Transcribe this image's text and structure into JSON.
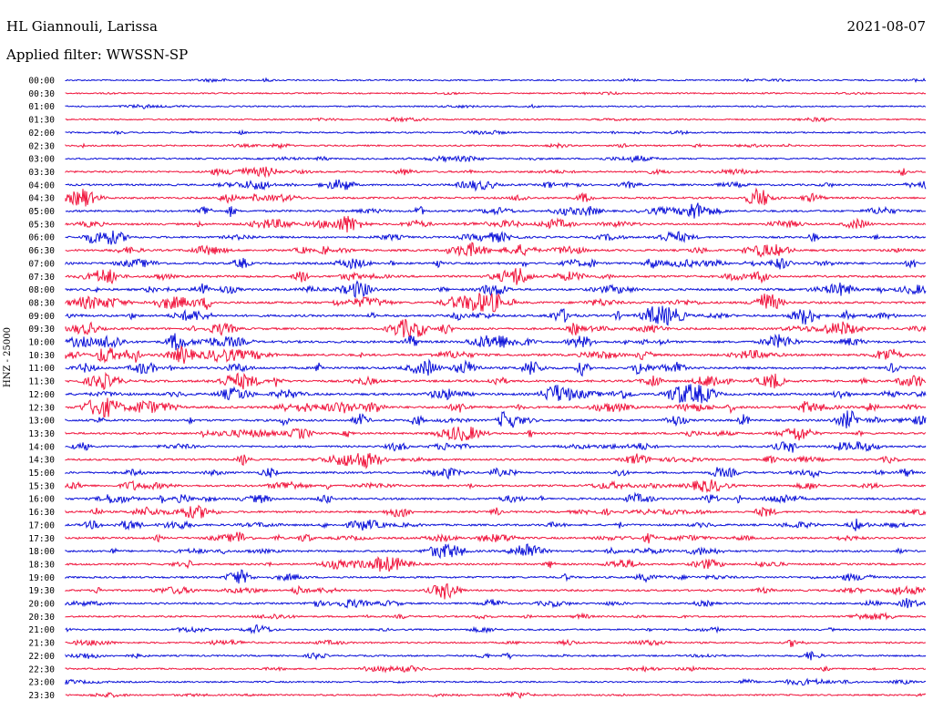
{
  "header": {
    "station": "HL Giannouli, Larissa",
    "date": "2021-08-07",
    "filter": "Applied filter: WWSSN-SP"
  },
  "colors": {
    "even_row": "#0a10d8",
    "odd_row": "#f0143c"
  },
  "chart_data": {
    "type": "line",
    "title": "HL Giannouli, Larissa",
    "ylabel": "HNZ - 25000",
    "xlabel": "",
    "row_labels": [
      "00:00",
      "00:30",
      "01:00",
      "01:30",
      "02:00",
      "02:30",
      "03:00",
      "03:30",
      "04:00",
      "04:30",
      "05:00",
      "05:30",
      "06:00",
      "06:30",
      "07:00",
      "07:30",
      "08:00",
      "08:30",
      "09:00",
      "09:30",
      "10:00",
      "10:30",
      "11:00",
      "11:30",
      "12:00",
      "12:30",
      "13:00",
      "13:30",
      "14:00",
      "14:30",
      "15:00",
      "15:30",
      "16:00",
      "16:30",
      "17:00",
      "17:30",
      "18:00",
      "18:30",
      "19:00",
      "19:30",
      "20:00",
      "20:30",
      "21:00",
      "21:30",
      "22:00",
      "22:30",
      "23:00",
      "23:30"
    ],
    "series_colors": [
      "#0a10d8",
      "#f0143c"
    ],
    "activity_levels": [
      0.15,
      0.12,
      0.12,
      0.15,
      0.2,
      0.22,
      0.25,
      0.4,
      0.45,
      0.45,
      0.5,
      0.5,
      0.5,
      0.55,
      0.6,
      0.6,
      0.65,
      0.65,
      0.65,
      0.6,
      0.7,
      0.7,
      0.7,
      0.65,
      0.7,
      0.7,
      0.6,
      0.5,
      0.45,
      0.45,
      0.5,
      0.5,
      0.55,
      0.5,
      0.5,
      0.5,
      0.5,
      0.45,
      0.45,
      0.45,
      0.4,
      0.3,
      0.3,
      0.3,
      0.3,
      0.25,
      0.25,
      0.25
    ],
    "grid": false
  }
}
